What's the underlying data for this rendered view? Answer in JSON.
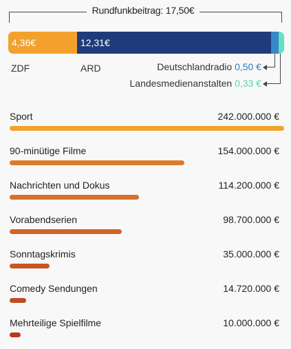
{
  "fee": {
    "title": "Rundfunkbeitrag: 17,50€",
    "segments": [
      {
        "name": "ZDF",
        "value": 4.36,
        "label": "4,36€",
        "color": "#f3a12d"
      },
      {
        "name": "ARD",
        "value": 12.31,
        "label": "12,31€",
        "color": "#1f3c7a"
      },
      {
        "name": "Deutschlandradio",
        "value": 0.5,
        "label": "0,50 €",
        "color": "#3a86c8"
      },
      {
        "name": "Landesmedienanstalten",
        "value": 0.33,
        "label": "0,33 €",
        "color": "#5fe3c0"
      }
    ]
  },
  "chart_data": {
    "type": "bar",
    "categories": [
      "Sport",
      "90-minütige Filme",
      "Nachrichten und Dokus",
      "Vorabendserien",
      "Sonntagskrimis",
      "Comedy Sendungen",
      "Mehrteilige Spielfilme"
    ],
    "values": [
      242000000,
      154000000,
      114200000,
      98700000,
      35000000,
      14720000,
      10000000
    ],
    "value_labels": [
      "242.000.000 €",
      "154.000.000 €",
      "114.200.000 €",
      "98.700.000 €",
      "35.000.000 €",
      "14.720.000 €",
      "10.000.000 €"
    ],
    "colors": [
      "#f3a12d",
      "#de7a2a",
      "#d9702a",
      "#cf6427",
      "#c95524",
      "#c04a22",
      "#b63b1e"
    ]
  }
}
